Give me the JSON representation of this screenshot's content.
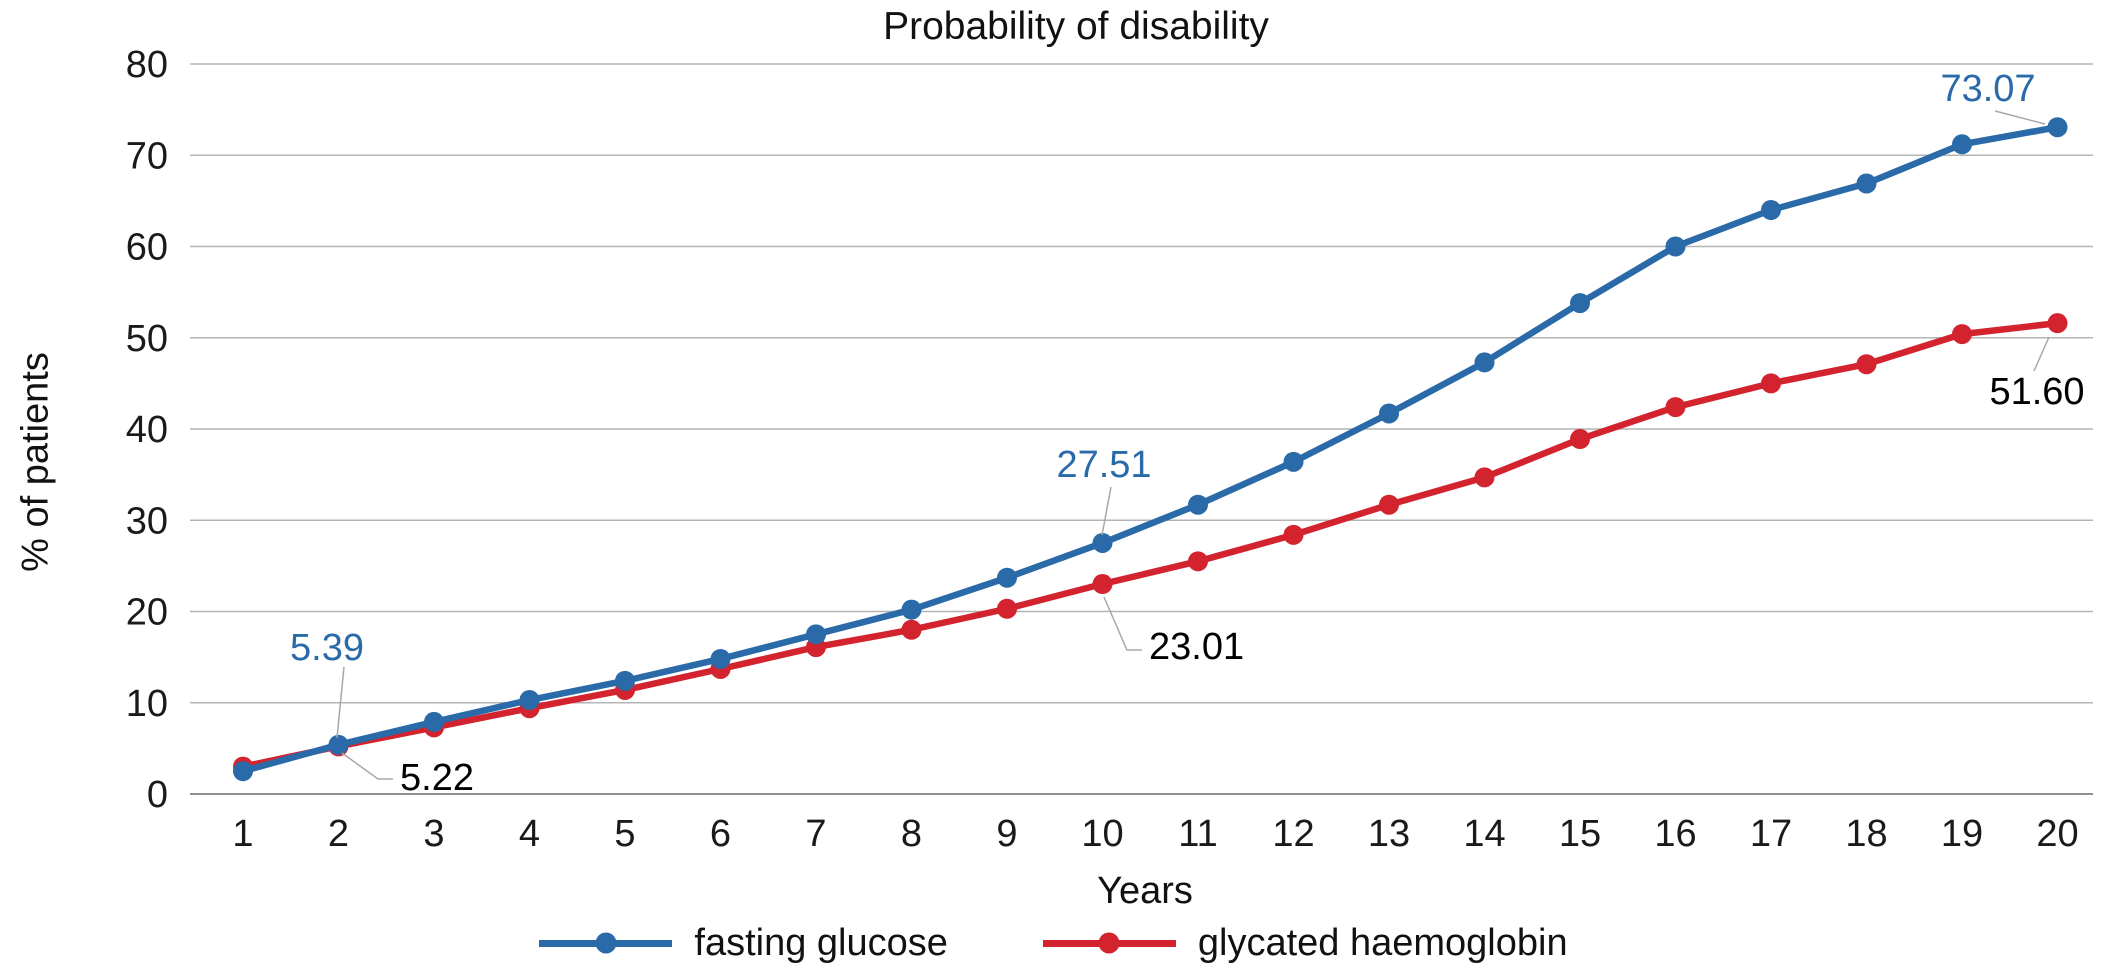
{
  "chart_data": {
    "type": "line",
    "title": "Probability of disability",
    "xlabel": "Years",
    "ylabel": "% of patients",
    "x": [
      1,
      2,
      3,
      4,
      5,
      6,
      7,
      8,
      9,
      10,
      11,
      12,
      13,
      14,
      15,
      16,
      17,
      18,
      19,
      20
    ],
    "ylim": [
      0,
      80
    ],
    "yticks": [
      0,
      10,
      20,
      30,
      40,
      50,
      60,
      70,
      80
    ],
    "grid": "horizontal",
    "legend_position": "bottom",
    "series": [
      {
        "name": "fasting glucose",
        "color": "#2a6aa8",
        "values": [
          2.5,
          5.39,
          7.9,
          10.3,
          12.4,
          14.8,
          17.5,
          20.2,
          23.7,
          27.51,
          31.7,
          36.4,
          41.7,
          47.3,
          53.8,
          60.0,
          64.0,
          66.9,
          71.2,
          73.07
        ]
      },
      {
        "name": "glycated haemoglobin",
        "color": "#d2232e",
        "values": [
          3.0,
          5.22,
          7.3,
          9.4,
          11.4,
          13.7,
          16.1,
          18.0,
          20.3,
          23.01,
          25.5,
          28.4,
          31.7,
          34.7,
          38.9,
          42.4,
          45.0,
          47.1,
          50.4,
          51.6
        ]
      }
    ],
    "annotations": [
      {
        "series": "fasting glucose",
        "x": 2,
        "label": "5.39",
        "color": "#2a6aa8"
      },
      {
        "series": "glycated haemoglobin",
        "x": 2,
        "label": "5.22",
        "color": "#000000"
      },
      {
        "series": "fasting glucose",
        "x": 10,
        "label": "27.51",
        "color": "#2a6aa8"
      },
      {
        "series": "glycated haemoglobin",
        "x": 10,
        "label": "23.01",
        "color": "#000000"
      },
      {
        "series": "fasting glucose",
        "x": 20,
        "label": "73.07",
        "color": "#2a6aa8"
      },
      {
        "series": "glycated haemoglobin",
        "x": 20,
        "label": "51.60",
        "color": "#000000"
      }
    ]
  },
  "colors": {
    "gridline": "#b4b4b4",
    "baseline": "#8f8f8f",
    "leader_line": "#a8a8a8",
    "text": "#1a1a1a"
  }
}
